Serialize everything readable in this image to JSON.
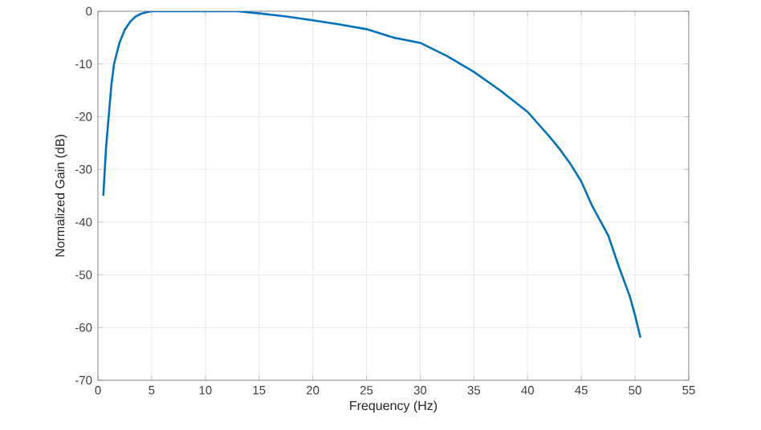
{
  "chart_data": {
    "type": "line",
    "xlabel": "Frequency (Hz)",
    "ylabel": "Normalized Gain (dB)",
    "xlim": [
      0,
      55
    ],
    "ylim": [
      -70,
      0
    ],
    "xticks": [
      0,
      5,
      10,
      15,
      20,
      25,
      30,
      35,
      40,
      45,
      50,
      55
    ],
    "yticks": [
      -70,
      -60,
      -50,
      -40,
      -30,
      -20,
      -10,
      0
    ],
    "grid": true,
    "series": [
      {
        "color": "#0072bd",
        "x": [
          0.5,
          0.75,
          1,
          1.25,
          1.5,
          2,
          2.5,
          3,
          3.5,
          4,
          4.5,
          5,
          6,
          8,
          10,
          13,
          15,
          17.5,
          20,
          22.5,
          25,
          27.5,
          30,
          32.5,
          35,
          37.5,
          40,
          42,
          43,
          44,
          45,
          46,
          47.5,
          48.5,
          49.5,
          50,
          50.5
        ],
        "values": [
          -35,
          -26,
          -20,
          -14,
          -10,
          -6,
          -3.5,
          -2,
          -1,
          -0.5,
          -0.2,
          0,
          0,
          0,
          0,
          0,
          -0.4,
          -1,
          -1.7,
          -2.5,
          -3.4,
          -5,
          -6,
          -8.5,
          -11.5,
          -15.1,
          -19.1,
          -23.7,
          -26.2,
          -29,
          -32.3,
          -36.9,
          -42.5,
          -48.5,
          -54,
          -57.7,
          -61.9
        ]
      }
    ]
  }
}
